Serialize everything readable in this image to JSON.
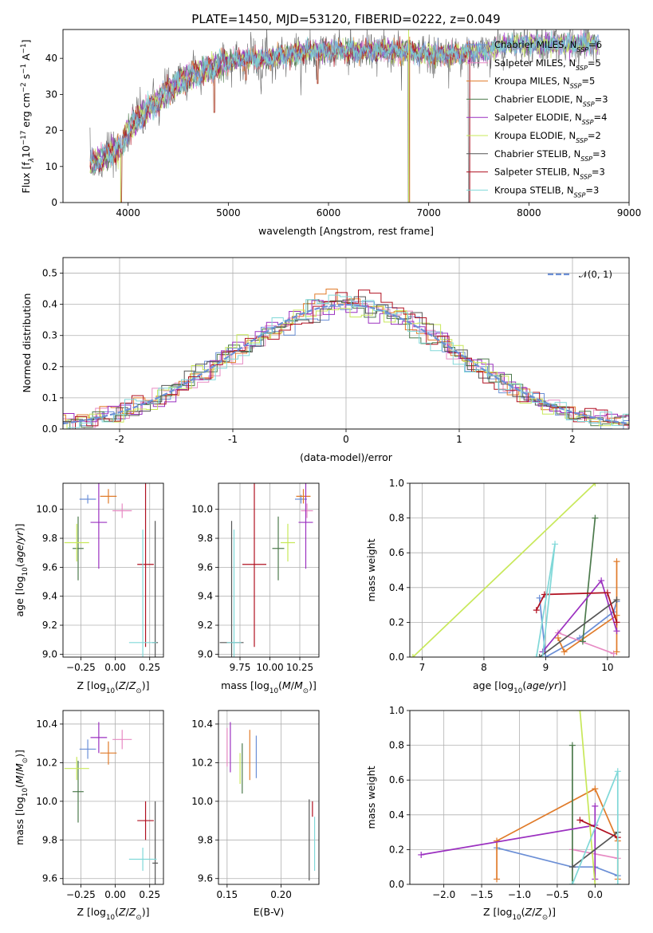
{
  "title": "PLATE=1450, MJD=53120, FIBERID=0222, z=0.049",
  "colors": {
    "chabrier_miles": "#6b8fd6",
    "salpeter_miles": "#e78ac3",
    "kroupa_miles": "#e07b2a",
    "chabrier_elodie": "#4c7a4c",
    "salpeter_elodie": "#9b30c0",
    "kroupa_elodie": "#c8e85a",
    "chabrier_stelib": "#555555",
    "salpeter_stelib": "#b01020",
    "kroupa_stelib": "#80d8d8",
    "normal_curve": "#6b8fd6"
  },
  "chart_data": [
    {
      "id": "spectrum",
      "type": "line",
      "xlabel": "wavelength [Angstrom, rest frame]",
      "ylabel": "Flux [f_λ 10^-17 erg cm^-2 s^-1 A^-1]",
      "ylabel_parts": {
        "a": "Flux [f",
        "b": "λ",
        "c": "10",
        "d": "−17",
        "e": " erg cm",
        "f": "−2",
        "g": " s",
        "h": "−1",
        "i": " A",
        "j": "−1",
        "k": "]"
      },
      "xlim": [
        3350,
        9000
      ],
      "ylim": [
        0,
        48
      ],
      "xticks": [
        4000,
        5000,
        6000,
        7000,
        8000,
        9000
      ],
      "yticks": [
        0,
        10,
        20,
        30,
        40
      ],
      "grid": false,
      "legend_position": "upper-right",
      "legend": [
        {
          "name": "Chabrier MILES",
          "nssp": "6"
        },
        {
          "name": "Salpeter MILES",
          "nssp": "5"
        },
        {
          "name": "Kroupa MILES",
          "nssp": "5"
        },
        {
          "name": "Chabrier ELODIE",
          "nssp": "3"
        },
        {
          "name": "Salpeter ELODIE",
          "nssp": "4"
        },
        {
          "name": "Kroupa ELODIE",
          "nssp": "2"
        },
        {
          "name": "Chabrier STELIB",
          "nssp": "3"
        },
        {
          "name": "Salpeter STELIB",
          "nssp": "3"
        },
        {
          "name": "Kroupa STELIB",
          "nssp": "3"
        }
      ],
      "legend_suffix": {
        "a": ", N",
        "b": "SSP",
        "c": "="
      },
      "continuum": [
        [
          3620,
          10
        ],
        [
          3700,
          12
        ],
        [
          3800,
          13
        ],
        [
          3900,
          15
        ],
        [
          3950,
          17
        ],
        [
          4000,
          20
        ],
        [
          4100,
          23
        ],
        [
          4200,
          26
        ],
        [
          4300,
          28
        ],
        [
          4400,
          31
        ],
        [
          4500,
          33
        ],
        [
          4600,
          35
        ],
        [
          4700,
          36
        ],
        [
          4800,
          37
        ],
        [
          4900,
          38
        ],
        [
          5000,
          39
        ],
        [
          5200,
          40
        ],
        [
          5400,
          40
        ],
        [
          5600,
          41
        ],
        [
          5800,
          42
        ],
        [
          6000,
          42
        ],
        [
          6200,
          42
        ],
        [
          6400,
          42
        ],
        [
          6600,
          42
        ],
        [
          6800,
          42
        ],
        [
          7000,
          41
        ],
        [
          7200,
          41
        ],
        [
          7400,
          41.5
        ],
        [
          7600,
          42
        ],
        [
          7800,
          44
        ],
        [
          8000,
          44
        ],
        [
          8200,
          44
        ],
        [
          8400,
          44
        ],
        [
          8700,
          44
        ]
      ],
      "absorption_features": [
        [
          3933,
          0
        ],
        [
          4861,
          25
        ],
        [
          5175,
          34
        ],
        [
          5893,
          33
        ],
        [
          6800,
          0
        ],
        [
          7400,
          0
        ]
      ]
    },
    {
      "id": "residuals",
      "type": "histogram",
      "xlabel": "(data-model)/error",
      "ylabel": "Normed distribution",
      "xlim": [
        -2.5,
        2.5
      ],
      "ylim": [
        0,
        0.55
      ],
      "xticks": [
        -2,
        -1,
        0,
        1,
        2
      ],
      "yticks": [
        0.0,
        0.1,
        0.2,
        0.3,
        0.4,
        0.5
      ],
      "grid": true,
      "legend_label": "𝒩(0, 1)",
      "bin_width": 0.1
    },
    {
      "id": "age_vs_Z",
      "type": "errorbar",
      "xlabel": "Z [log10(Z/Z⊙)]",
      "ylabel": "age [log10(age/yr)]",
      "xlim": [
        -0.38,
        0.35
      ],
      "ylim": [
        8.98,
        10.18
      ],
      "xticks": [
        -0.25,
        0.0,
        0.25
      ],
      "xticklabels": [
        "−0.25",
        "0.00",
        "0.25"
      ],
      "yticks": [
        9.0,
        9.2,
        9.4,
        9.6,
        9.8,
        10.0
      ],
      "grid": true,
      "points": [
        {
          "s": "chabrier_miles",
          "x": -0.2,
          "xe": 0.06,
          "y": 10.07,
          "ye": 0.03
        },
        {
          "s": "salpeter_miles",
          "x": 0.05,
          "xe": 0.07,
          "y": 9.99,
          "ye": 0.05
        },
        {
          "s": "kroupa_miles",
          "x": -0.05,
          "xe": 0.06,
          "y": 10.09,
          "ye": 0.05
        },
        {
          "s": "chabrier_elodie",
          "x": -0.27,
          "xe": 0.04,
          "y": 9.73,
          "ye": 0.22
        },
        {
          "s": "salpeter_elodie",
          "x": -0.12,
          "xe": 0.06,
          "y": 9.91,
          "ye": 0.32
        },
        {
          "s": "kroupa_elodie",
          "x": -0.28,
          "xe": 0.09,
          "y": 9.77,
          "ye": 0.13
        },
        {
          "s": "chabrier_stelib",
          "x": 0.29,
          "xe": 0.02,
          "y": 9.08,
          "ye": 0.84
        },
        {
          "s": "salpeter_stelib",
          "x": 0.22,
          "xe": 0.06,
          "y": 9.62,
          "ye": 0.57
        },
        {
          "s": "kroupa_stelib",
          "x": 0.2,
          "xe": 0.1,
          "y": 9.08,
          "ye": 0.78
        }
      ]
    },
    {
      "id": "age_vs_mass",
      "type": "errorbar",
      "xlabel": "mass [log10(M/M⊙)]",
      "xlim": [
        9.57,
        10.41
      ],
      "ylim": [
        8.98,
        10.18
      ],
      "xticks": [
        9.75,
        10.0,
        10.25
      ],
      "xticklabels": [
        "9.75",
        "10.00",
        "10.25"
      ],
      "yticks": [
        9.0,
        9.2,
        9.4,
        9.6,
        9.8,
        10.0
      ],
      "grid": true,
      "points": [
        {
          "s": "chabrier_miles",
          "x": 10.26,
          "xe": 0.05,
          "y": 10.07,
          "ye": 0.03
        },
        {
          "s": "salpeter_miles",
          "x": 10.31,
          "xe": 0.05,
          "y": 9.99,
          "ye": 0.05
        },
        {
          "s": "kroupa_miles",
          "x": 10.28,
          "xe": 0.06,
          "y": 10.09,
          "ye": 0.05
        },
        {
          "s": "chabrier_elodie",
          "x": 10.07,
          "xe": 0.05,
          "y": 9.73,
          "ye": 0.22
        },
        {
          "s": "salpeter_elodie",
          "x": 10.3,
          "xe": 0.06,
          "y": 9.91,
          "ye": 0.32
        },
        {
          "s": "kroupa_elodie",
          "x": 10.15,
          "xe": 0.06,
          "y": 9.77,
          "ye": 0.13
        },
        {
          "s": "chabrier_stelib",
          "x": 9.68,
          "xe": 0.1,
          "y": 9.08,
          "ye": 0.84
        },
        {
          "s": "salpeter_stelib",
          "x": 9.87,
          "xe": 0.1,
          "y": 9.62,
          "ye": 0.57
        },
        {
          "s": "kroupa_stelib",
          "x": 9.7,
          "xe": 0.06,
          "y": 9.08,
          "ye": 0.78
        }
      ]
    },
    {
      "id": "mass_vs_Z",
      "type": "errorbar",
      "xlabel": "Z [log10(Z/Z⊙)]",
      "ylabel": "mass [log10(M/M⊙)]",
      "xlim": [
        -0.38,
        0.35
      ],
      "ylim": [
        9.57,
        10.47
      ],
      "xticks": [
        -0.25,
        0.0,
        0.25
      ],
      "xticklabels": [
        "−0.25",
        "0.00",
        "0.25"
      ],
      "yticks": [
        9.6,
        9.8,
        10.0,
        10.2,
        10.4
      ],
      "grid": true,
      "points": [
        {
          "s": "chabrier_miles",
          "x": -0.2,
          "xe": 0.06,
          "y": 10.27,
          "ye": 0.05
        },
        {
          "s": "salpeter_miles",
          "x": 0.05,
          "xe": 0.07,
          "y": 10.32,
          "ye": 0.05
        },
        {
          "s": "kroupa_miles",
          "x": -0.05,
          "xe": 0.06,
          "y": 10.25,
          "ye": 0.06
        },
        {
          "s": "chabrier_elodie",
          "x": -0.27,
          "xe": 0.04,
          "y": 10.05,
          "ye": 0.16
        },
        {
          "s": "salpeter_elodie",
          "x": -0.12,
          "xe": 0.06,
          "y": 10.33,
          "ye": 0.08
        },
        {
          "s": "kroupa_elodie",
          "x": -0.28,
          "xe": 0.09,
          "y": 10.17,
          "ye": 0.06
        },
        {
          "s": "chabrier_stelib",
          "x": 0.29,
          "xe": 0.02,
          "y": 9.68,
          "ye": 0.32
        },
        {
          "s": "salpeter_stelib",
          "x": 0.22,
          "xe": 0.06,
          "y": 9.9,
          "ye": 0.1
        },
        {
          "s": "kroupa_stelib",
          "x": 0.2,
          "xe": 0.1,
          "y": 9.7,
          "ye": 0.06
        }
      ]
    },
    {
      "id": "mass_vs_ebv",
      "type": "errorbar",
      "xlabel": "E(B-V)",
      "xlim": [
        0.142,
        0.235
      ],
      "ylim": [
        9.57,
        10.47
      ],
      "xticks": [
        0.15,
        0.2
      ],
      "xticklabels": [
        "0.15",
        "0.20"
      ],
      "yticks": [
        9.6,
        9.8,
        10.0,
        10.2,
        10.4
      ],
      "grid": true,
      "points": [
        {
          "s": "chabrier_miles",
          "x": 0.177,
          "xe": 0,
          "y": 10.23,
          "ye": 0.11
        },
        {
          "s": "salpeter_miles",
          "x": 0.15,
          "xe": 0,
          "y": 10.28,
          "ye": 0.1
        },
        {
          "s": "kroupa_miles",
          "x": 0.171,
          "xe": 0,
          "y": 10.24,
          "ye": 0.13
        },
        {
          "s": "chabrier_elodie",
          "x": 0.164,
          "xe": 0,
          "y": 10.17,
          "ye": 0.13
        },
        {
          "s": "salpeter_elodie",
          "x": 0.153,
          "xe": 0,
          "y": 10.28,
          "ye": 0.13
        },
        {
          "s": "kroupa_elodie",
          "x": 0.162,
          "xe": 0,
          "y": 10.17,
          "ye": 0.08
        },
        {
          "s": "chabrier_stelib",
          "x": 0.226,
          "xe": 0,
          "y": 9.8,
          "ye": 0.21
        },
        {
          "s": "salpeter_stelib",
          "x": 0.229,
          "xe": 0,
          "y": 9.96,
          "ye": 0.04
        },
        {
          "s": "kroupa_stelib",
          "x": 0.231,
          "xe": 0,
          "y": 9.78,
          "ye": 0.14
        }
      ]
    },
    {
      "id": "weight_vs_age",
      "type": "line",
      "xlabel": "age [log10(age/yr)]",
      "ylabel": "mass weight",
      "xlim": [
        6.8,
        10.35
      ],
      "ylim": [
        0,
        1.0
      ],
      "xticks": [
        7,
        8,
        9,
        10
      ],
      "yticks": [
        0.0,
        0.2,
        0.4,
        0.6,
        0.8,
        1.0
      ],
      "grid": true,
      "series": [
        {
          "s": "chabrier_miles",
          "points": [
            [
              8.9,
              0.34
            ],
            [
              9.0,
              0.0
            ],
            [
              9.55,
              0.11
            ],
            [
              10.1,
              0.26
            ],
            [
              10.15,
              0.32
            ]
          ]
        },
        {
          "s": "salpeter_miles",
          "points": [
            [
              9.2,
              0.14
            ],
            [
              10.1,
              0.02
            ]
          ]
        },
        {
          "s": "kroupa_miles",
          "points": [
            [
              9.2,
              0.11
            ],
            [
              9.3,
              0.03
            ],
            [
              10.15,
              0.24
            ],
            [
              10.15,
              0.55
            ],
            [
              10.15,
              0.03
            ]
          ]
        },
        {
          "s": "chabrier_elodie",
          "points": [
            [
              9.6,
              0.09
            ],
            [
              9.8,
              0.8
            ]
          ]
        },
        {
          "s": "salpeter_elodie",
          "points": [
            [
              8.95,
              0.03
            ],
            [
              9.9,
              0.44
            ],
            [
              10.15,
              0.15
            ]
          ]
        },
        {
          "s": "kroupa_elodie",
          "points": [
            [
              6.85,
              0.0
            ],
            [
              9.8,
              1.0
            ]
          ]
        },
        {
          "s": "chabrier_stelib",
          "points": [
            [
              8.9,
              0.0
            ],
            [
              10.15,
              0.33
            ]
          ]
        },
        {
          "s": "salpeter_stelib",
          "points": [
            [
              8.85,
              0.27
            ],
            [
              8.98,
              0.36
            ],
            [
              10.0,
              0.37
            ],
            [
              10.15,
              0.2
            ]
          ]
        },
        {
          "s": "kroupa_stelib",
          "points": [
            [
              8.85,
              0.0
            ],
            [
              9.15,
              0.65
            ],
            [
              8.95,
              0.0
            ]
          ]
        }
      ]
    },
    {
      "id": "weight_vs_Z",
      "type": "line",
      "xlabel": "Z [log10(Z/Z⊙)]",
      "ylabel": "mass weight",
      "xlim": [
        -2.45,
        0.45
      ],
      "ylim": [
        0,
        1.0
      ],
      "xticks": [
        -2.0,
        -1.5,
        -1.0,
        -0.5,
        0.0
      ],
      "xticklabels": [
        "−2.0",
        "−1.5",
        "−1.0",
        "−0.5",
        "0.0"
      ],
      "yticks": [
        0.0,
        0.2,
        0.4,
        0.6,
        0.8,
        1.0
      ],
      "grid": true,
      "series": [
        {
          "s": "chabrier_miles",
          "points": [
            [
              -1.3,
              0.21
            ],
            [
              -0.3,
              0.1
            ],
            [
              0.0,
              0.1
            ],
            [
              0.3,
              0.05
            ]
          ]
        },
        {
          "s": "salpeter_miles",
          "points": [
            [
              -0.3,
              0.2
            ],
            [
              0.3,
              0.15
            ]
          ]
        },
        {
          "s": "kroupa_miles",
          "points": [
            [
              -1.3,
              0.03
            ],
            [
              -1.3,
              0.25
            ],
            [
              0.0,
              0.55
            ],
            [
              0.3,
              0.25
            ],
            [
              0.3,
              0.03
            ]
          ]
        },
        {
          "s": "chabrier_elodie",
          "points": [
            [
              -0.3,
              0.0
            ],
            [
              -0.3,
              0.8
            ]
          ]
        },
        {
          "s": "salpeter_elodie",
          "points": [
            [
              -2.3,
              0.17
            ],
            [
              0.0,
              0.34
            ],
            [
              0.0,
              0.45
            ],
            [
              0.0,
              0.03
            ]
          ]
        },
        {
          "s": "kroupa_elodie",
          "points": [
            [
              -0.2,
              1.0
            ],
            [
              0.0,
              0.0
            ]
          ]
        },
        {
          "s": "chabrier_stelib",
          "points": [
            [
              -0.3,
              0.1
            ],
            [
              0.3,
              0.3
            ]
          ]
        },
        {
          "s": "salpeter_stelib",
          "points": [
            [
              -0.2,
              0.37
            ],
            [
              0.3,
              0.27
            ]
          ]
        },
        {
          "s": "kroupa_stelib",
          "points": [
            [
              -0.3,
              0.0
            ],
            [
              0.3,
              0.65
            ],
            [
              0.3,
              0.0
            ]
          ]
        }
      ]
    }
  ]
}
